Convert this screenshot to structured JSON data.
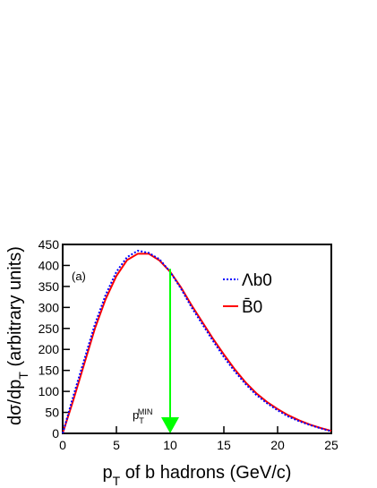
{
  "chart_data": {
    "type": "line",
    "x": [
      0,
      1,
      2,
      3,
      4,
      5,
      6,
      7,
      8,
      9,
      10,
      11,
      12,
      13,
      14,
      15,
      16,
      17,
      18,
      19,
      20,
      21,
      22,
      23,
      24,
      25
    ],
    "series": [
      {
        "name": "Λb0",
        "color": "#0000ff",
        "dash": "dotted",
        "values": [
          0,
          90,
          175,
          260,
          330,
          385,
          420,
          435,
          430,
          415,
          385,
          345,
          300,
          260,
          220,
          182,
          148,
          118,
          92,
          72,
          55,
          40,
          29,
          20,
          12,
          5
        ]
      },
      {
        "name": "B̄0",
        "color": "#ff0000",
        "dash": "solid",
        "values": [
          0,
          80,
          165,
          250,
          320,
          375,
          413,
          428,
          428,
          412,
          385,
          348,
          305,
          265,
          225,
          188,
          153,
          122,
          96,
          75,
          58,
          43,
          31,
          21,
          13,
          6
        ]
      }
    ],
    "xlim": [
      0,
      25
    ],
    "xticks": [
      0,
      5,
      10,
      15,
      20,
      25
    ],
    "ylim": [
      0,
      450
    ],
    "yticks": [
      0,
      50,
      100,
      150,
      200,
      250,
      300,
      350,
      400,
      450
    ],
    "xlabel": [
      "p",
      "T",
      " of b hadrons (GeV/c)"
    ],
    "ylabel": [
      "dσ/dp",
      "T",
      " (arbitrary units)"
    ],
    "annotation": "(a)",
    "arrow": {
      "x": 10,
      "y_top": 392,
      "color": "#00ff00",
      "label": [
        "p",
        "T",
        "MIN"
      ]
    }
  }
}
